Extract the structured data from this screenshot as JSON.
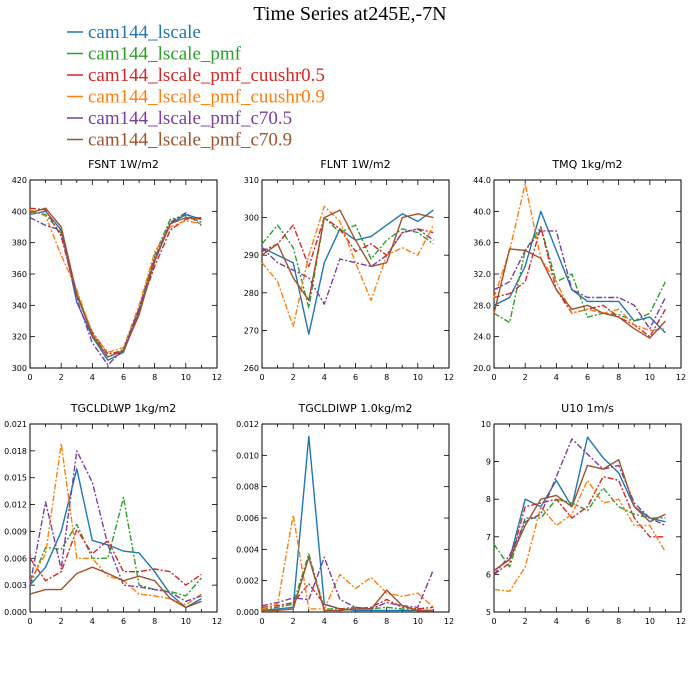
{
  "figure_title": "Time Series at245E,-7N",
  "legend": [
    {
      "label": "cam144_lscale",
      "color": "#1f77b4",
      "dash": "solid"
    },
    {
      "label": "cam144_lscale_pmf",
      "color": "#2ca02c",
      "dash": "dashdot"
    },
    {
      "label": "cam144_lscale_pmf_cuushr0.5",
      "color": "#d62728",
      "dash": "dashdot"
    },
    {
      "label": "cam144_lscale_pmf_cuushr0.9",
      "color": "#ff7f0e",
      "dash": "dashdot"
    },
    {
      "label": "cam144_lscale_pmf_c70.5",
      "color": "#7b3fa0",
      "dash": "dashdot"
    },
    {
      "label": "cam144_lscale_pmf_c70.9",
      "color": "#a0522d",
      "dash": "solid"
    }
  ],
  "chart_data": [
    {
      "type": "line",
      "title": "FSNT   1W/m2",
      "xlim": [
        0,
        12
      ],
      "ylim": [
        300,
        420
      ],
      "xticks": [
        "0",
        "2",
        "4",
        "6",
        "8",
        "10",
        "12"
      ],
      "yticks": [
        "300",
        "320",
        "340",
        "360",
        "380",
        "400",
        "420"
      ],
      "yticks_values": [
        300,
        320,
        340,
        360,
        380,
        400,
        420
      ],
      "x": [
        0,
        1,
        2,
        3,
        4,
        5,
        6,
        7,
        8,
        9,
        10,
        11
      ],
      "series": [
        {
          "name": "cam144_lscale",
          "values": [
            398,
            400,
            388,
            342,
            320,
            305,
            310,
            336,
            368,
            392,
            398,
            395
          ]
        },
        {
          "name": "cam144_lscale_pmf",
          "values": [
            400,
            398,
            386,
            348,
            322,
            307,
            312,
            338,
            372,
            395,
            397,
            393
          ]
        },
        {
          "name": "cam144_lscale_pmf_cuushr0.5",
          "values": [
            402,
            401,
            384,
            346,
            323,
            309,
            311,
            337,
            365,
            388,
            395,
            396
          ]
        },
        {
          "name": "cam144_lscale_pmf_cuushr0.9",
          "values": [
            401,
            397,
            372,
            350,
            322,
            310,
            313,
            340,
            374,
            390,
            394,
            392
          ]
        },
        {
          "name": "cam144_lscale_pmf_c70.5",
          "values": [
            396,
            391,
            388,
            344,
            316,
            302,
            312,
            338,
            370,
            393,
            399,
            391
          ]
        },
        {
          "name": "cam144_lscale_pmf_c70.9",
          "values": [
            399,
            402,
            390,
            347,
            321,
            307,
            311,
            334,
            369,
            392,
            396,
            395
          ]
        }
      ]
    },
    {
      "type": "line",
      "title": "FLNT   1W/m2",
      "xlim": [
        0,
        12
      ],
      "ylim": [
        260,
        310
      ],
      "xticks": [
        "0",
        "2",
        "4",
        "6",
        "8",
        "10",
        "12"
      ],
      "yticks": [
        "260",
        "270",
        "280",
        "290",
        "300",
        "310"
      ],
      "yticks_values": [
        260,
        270,
        280,
        290,
        300,
        310
      ],
      "x": [
        0,
        1,
        2,
        3,
        4,
        5,
        6,
        7,
        8,
        9,
        10,
        11
      ],
      "series": [
        {
          "name": "cam144_lscale",
          "values": [
            292,
            290,
            288,
            269,
            288,
            297,
            294,
            295,
            298,
            301,
            299,
            302
          ]
        },
        {
          "name": "cam144_lscale_pmf",
          "values": [
            293,
            298,
            292,
            276,
            300,
            296,
            298,
            289,
            294,
            297,
            296,
            293
          ]
        },
        {
          "name": "cam144_lscale_pmf_cuushr0.5",
          "values": [
            291,
            293,
            298,
            287,
            300,
            297,
            291,
            293,
            290,
            296,
            297,
            296
          ]
        },
        {
          "name": "cam144_lscale_pmf_cuushr0.9",
          "values": [
            288,
            283,
            271,
            290,
            303,
            299,
            288,
            278,
            290,
            292,
            290,
            298
          ]
        },
        {
          "name": "cam144_lscale_pmf_c70.5",
          "values": [
            292,
            288,
            286,
            284,
            277,
            289,
            288,
            287,
            290,
            296,
            297,
            294
          ]
        },
        {
          "name": "cam144_lscale_pmf_c70.9",
          "values": [
            290,
            293,
            284,
            278,
            300,
            302,
            294,
            287,
            288,
            300,
            301,
            300
          ]
        }
      ]
    },
    {
      "type": "line",
      "title": "TMQ   1kg/m2",
      "xlim": [
        0,
        12
      ],
      "ylim": [
        20,
        44
      ],
      "xticks": [
        "0",
        "2",
        "4",
        "6",
        "8",
        "10",
        "12"
      ],
      "yticks": [
        "20.0",
        "24.0",
        "28.0",
        "32.0",
        "36.0",
        "40.0",
        "44.0"
      ],
      "yticks_values": [
        20,
        24,
        28,
        32,
        36,
        40,
        44
      ],
      "x": [
        0,
        1,
        2,
        3,
        4,
        5,
        6,
        7,
        8,
        9,
        10,
        11
      ],
      "series": [
        {
          "name": "cam144_lscale",
          "values": [
            28,
            29,
            33,
            40,
            35,
            30,
            28.5,
            28.5,
            28.5,
            26,
            26.5,
            24.5
          ]
        },
        {
          "name": "cam144_lscale_pmf",
          "values": [
            27,
            25.8,
            35,
            38,
            31,
            32,
            26.5,
            27,
            26.8,
            26,
            27,
            31
          ]
        },
        {
          "name": "cam144_lscale_pmf_cuushr0.5",
          "values": [
            29,
            29.5,
            31,
            38,
            30,
            27,
            27.5,
            28,
            26.5,
            25.5,
            24,
            27.5
          ]
        },
        {
          "name": "cam144_lscale_pmf_cuushr0.9",
          "values": [
            29,
            35,
            43.5,
            34,
            31,
            27,
            27.5,
            27,
            27.5,
            25.5,
            24.8,
            25
          ]
        },
        {
          "name": "cam144_lscale_pmf_c70.5",
          "values": [
            30,
            31,
            35,
            37.5,
            37.5,
            30,
            29,
            29,
            29,
            28,
            25,
            29
          ]
        },
        {
          "name": "cam144_lscale_pmf_c70.9",
          "values": [
            27,
            35.2,
            35,
            34,
            30,
            27.5,
            28,
            27,
            26.5,
            25,
            23.8,
            26
          ]
        }
      ]
    },
    {
      "type": "line",
      "title": "TGCLDLWP   1kg/m2",
      "xlim": [
        0,
        12
      ],
      "ylim": [
        0,
        0.021
      ],
      "xticks": [
        "0",
        "2",
        "4",
        "6",
        "8",
        "10",
        "12"
      ],
      "yticks": [
        "0.000",
        "0.003",
        "0.006",
        "0.009",
        "0.012",
        "0.015",
        "0.018",
        "0.021"
      ],
      "yticks_values": [
        0,
        0.003,
        0.006,
        0.009,
        0.012,
        0.015,
        0.018,
        0.021
      ],
      "x": [
        0,
        1,
        2,
        3,
        4,
        5,
        6,
        7,
        8,
        9,
        10,
        11
      ],
      "series": [
        {
          "name": "cam144_lscale",
          "values": [
            0.003,
            0.005,
            0.009,
            0.016,
            0.008,
            0.0075,
            0.0068,
            0.0066,
            0.0045,
            0.002,
            0.0005,
            0.0015
          ]
        },
        {
          "name": "cam144_lscale_pmf",
          "values": [
            0.003,
            0.0072,
            0.007,
            0.0098,
            0.006,
            0.006,
            0.0128,
            0.003,
            0.0025,
            0.0023,
            0.0018,
            0.0038
          ]
        },
        {
          "name": "cam144_lscale_pmf_cuushr0.5",
          "values": [
            0.006,
            0.0035,
            0.0045,
            0.0092,
            0.0065,
            0.008,
            0.0045,
            0.0045,
            0.0048,
            0.0045,
            0.003,
            0.0042
          ]
        },
        {
          "name": "cam144_lscale_pmf_cuushr0.9",
          "values": [
            0.0035,
            0.0065,
            0.0188,
            0.006,
            0.006,
            0.004,
            0.0035,
            0.002,
            0.0018,
            0.0015,
            0.0008,
            0.002
          ]
        },
        {
          "name": "cam144_lscale_pmf_c70.5",
          "values": [
            0.003,
            0.0123,
            0.0048,
            0.018,
            0.0145,
            0.0075,
            0.003,
            0.0028,
            0.0025,
            0.0022,
            0.0012,
            0.0018
          ]
        },
        {
          "name": "cam144_lscale_pmf_c70.9",
          "values": [
            0.002,
            0.0025,
            0.0025,
            0.0043,
            0.005,
            0.0043,
            0.0035,
            0.004,
            0.0035,
            0.0015,
            0.0005,
            0.0012
          ]
        }
      ]
    },
    {
      "type": "line",
      "title": "TGCLDIWP   1.0kg/m2",
      "xlim": [
        0,
        12
      ],
      "ylim": [
        0,
        0.012
      ],
      "xticks": [
        "0",
        "2",
        "4",
        "6",
        "8",
        "10",
        "12"
      ],
      "yticks": [
        "0.000",
        "0.002",
        "0.004",
        "0.006",
        "0.008",
        "0.010",
        "0.012"
      ],
      "yticks_values": [
        0,
        0.002,
        0.004,
        0.006,
        0.008,
        0.01,
        0.012
      ],
      "x": [
        0,
        1,
        2,
        3,
        4,
        5,
        6,
        7,
        8,
        9,
        10,
        11
      ],
      "series": [
        {
          "name": "cam144_lscale",
          "values": [
            0.0001,
            0.0002,
            0.0003,
            0.0112,
            0.0005,
            0.0002,
            0.0001,
            0.0001,
            0.0001,
            0.0001,
            0.0001,
            0.0001
          ]
        },
        {
          "name": "cam144_lscale_pmf",
          "values": [
            0.0002,
            0.0003,
            0.0005,
            0.0037,
            0.0002,
            0.0002,
            0.0003,
            0.0002,
            0.0003,
            0.0002,
            0.0001,
            0.0001
          ]
        },
        {
          "name": "cam144_lscale_pmf_cuushr0.5",
          "values": [
            0.0003,
            0.0004,
            0.0006,
            0.0018,
            0.0005,
            0.0002,
            0.0002,
            0.0003,
            0.0008,
            0.0003,
            0.0002,
            0.0003
          ]
        },
        {
          "name": "cam144_lscale_pmf_cuushr0.9",
          "values": [
            0.0002,
            0.0005,
            0.0062,
            0.0002,
            0.0002,
            0.0024,
            0.0015,
            0.0022,
            0.0012,
            0.001,
            0.0012,
            0.0003
          ]
        },
        {
          "name": "cam144_lscale_pmf_c70.5",
          "values": [
            0.0004,
            0.0006,
            0.0009,
            0.0008,
            0.0035,
            0.0008,
            0.0003,
            0.0002,
            0.0006,
            0.0004,
            0.0003,
            0.0027
          ]
        },
        {
          "name": "cam144_lscale_pmf_c70.9",
          "values": [
            0.0001,
            0.0001,
            0.0002,
            0.0035,
            0.0001,
            0.0001,
            0.0002,
            0.0002,
            0.0014,
            0.0004,
            0.0001,
            0.0001
          ]
        }
      ]
    },
    {
      "type": "line",
      "title": "U10   1m/s",
      "xlim": [
        0,
        12
      ],
      "ylim": [
        5,
        10
      ],
      "xticks": [
        "0",
        "2",
        "4",
        "6",
        "8",
        "10",
        "12"
      ],
      "yticks": [
        "5",
        "6",
        "7",
        "8",
        "9",
        "10"
      ],
      "yticks_values": [
        5,
        6,
        7,
        8,
        9,
        10
      ],
      "x": [
        0,
        1,
        2,
        3,
        4,
        5,
        6,
        7,
        8,
        9,
        10,
        11
      ],
      "series": [
        {
          "name": "cam144_lscale",
          "values": [
            6.1,
            6.4,
            8.0,
            7.8,
            8.5,
            7.8,
            9.65,
            9.1,
            8.7,
            7.8,
            7.5,
            7.4
          ]
        },
        {
          "name": "cam144_lscale_pmf",
          "values": [
            6.8,
            6.2,
            7.5,
            7.5,
            8.0,
            7.9,
            7.7,
            8.3,
            7.8,
            7.6,
            7.5,
            7.5
          ]
        },
        {
          "name": "cam144_lscale_pmf_cuushr0.5",
          "values": [
            6.0,
            6.3,
            7.8,
            7.9,
            8.0,
            7.5,
            7.8,
            8.6,
            8.5,
            7.5,
            7.0,
            7.0
          ]
        },
        {
          "name": "cam144_lscale_pmf_cuushr0.9",
          "values": [
            5.6,
            5.55,
            6.2,
            7.8,
            7.3,
            7.6,
            8.5,
            7.9,
            8.0,
            7.3,
            7.3,
            6.6
          ]
        },
        {
          "name": "cam144_lscale_pmf_c70.5",
          "values": [
            6.0,
            6.5,
            7.4,
            7.6,
            8.6,
            9.6,
            9.2,
            8.8,
            8.9,
            7.9,
            7.5,
            7.3
          ]
        },
        {
          "name": "cam144_lscale_pmf_c70.9",
          "values": [
            6.1,
            6.4,
            7.3,
            8.0,
            8.1,
            7.8,
            8.9,
            8.8,
            9.05,
            7.8,
            7.4,
            7.6
          ]
        }
      ]
    }
  ]
}
